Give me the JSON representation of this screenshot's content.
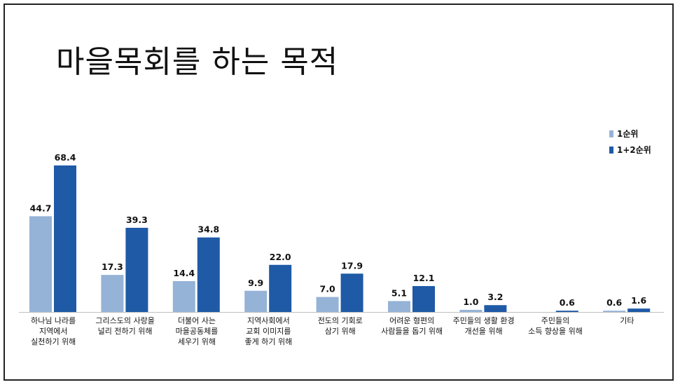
{
  "title": "마을목회를 하는 목적",
  "chart_data": {
    "type": "bar",
    "categories": [
      [
        "하나님 나라를",
        "지역에서",
        "실천하기 위해"
      ],
      [
        "그리스도의 사랑을",
        "널리 전하기 위해"
      ],
      [
        "더불어 사는",
        "마을공동체를",
        "세우기 위해"
      ],
      [
        "지역사회에서",
        "교회 이미지를",
        "좋게 하기 위해"
      ],
      [
        "전도의 기회로",
        "삼기 위해"
      ],
      [
        "어려운 형편의",
        "사람들을 돕기 위해"
      ],
      [
        "주민들의 생활 환경",
        "개선을 위해"
      ],
      [
        "주민들의",
        "소득 향상을 위해"
      ],
      [
        "기타"
      ]
    ],
    "series": [
      {
        "name": "1순위",
        "color": "#95b3d7",
        "values": [
          44.7,
          17.3,
          14.4,
          9.9,
          7.0,
          5.1,
          1.0,
          null,
          0.6
        ]
      },
      {
        "name": "1+2순위",
        "color": "#1f5aa6",
        "values": [
          68.4,
          39.3,
          34.8,
          22.0,
          17.9,
          12.1,
          3.2,
          0.6,
          1.6
        ]
      }
    ],
    "value_labels": [
      [
        "44.7",
        "17.3",
        "14.4",
        "9.9",
        "7.0",
        "5.1",
        "1.0",
        "",
        "0.6"
      ],
      [
        "68.4",
        "39.3",
        "34.8",
        "22.0",
        "17.9",
        "12.1",
        "3.2",
        "0.6",
        "1.6"
      ]
    ],
    "ylim": [
      0,
      70
    ],
    "grid": false,
    "legend": "right"
  }
}
